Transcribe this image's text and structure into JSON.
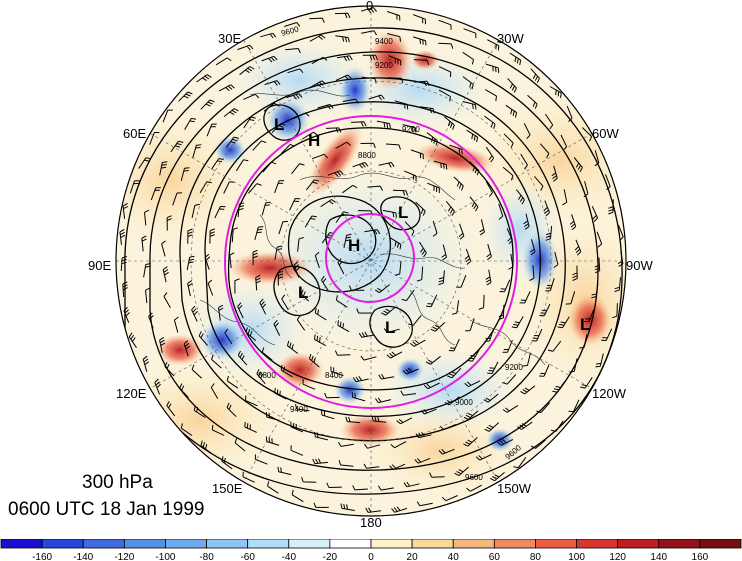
{
  "map": {
    "level": "300 hPa",
    "valid_time": "0600 UTC 18 Jan 1999",
    "longitude_labels": [
      "0",
      "30W",
      "60W",
      "90W",
      "120W",
      "150W",
      "180",
      "150E",
      "120E",
      "90E",
      "60E",
      "30E"
    ],
    "pressure_centers": [
      "L",
      "H",
      "H",
      "L",
      "L",
      "L",
      "L"
    ],
    "contour_labels": [
      "9600",
      "9400",
      "9200",
      "9200",
      "8800",
      "8400",
      "8800",
      "9000",
      "9200",
      "9400",
      "9600",
      "9600"
    ],
    "projection": "north-polar-stereographic",
    "shaded_field_colors": {
      "negative": "#2a52d6",
      "positive": "#c8201e",
      "zero": "#ffffff"
    },
    "contour_color": "#000000",
    "jet_circle_color": "#e020e0"
  },
  "colorbar": {
    "ticks": [
      "-160",
      "-140",
      "-120",
      "-100",
      "-80",
      "-60",
      "-40",
      "-20",
      "0",
      "20",
      "40",
      "60",
      "80",
      "100",
      "120",
      "140",
      "160"
    ],
    "colors": [
      "#1a0fd0",
      "#2a45dc",
      "#3d6ce0",
      "#5590e6",
      "#70aaee",
      "#8ec6f3",
      "#b2dcf8",
      "#d7eefb",
      "#ffffff",
      "#fef2c6",
      "#fbd99d",
      "#f6b77c",
      "#f08b60",
      "#e95d45",
      "#d9342e",
      "#bd1c22",
      "#961219",
      "#7a0c14"
    ]
  }
}
